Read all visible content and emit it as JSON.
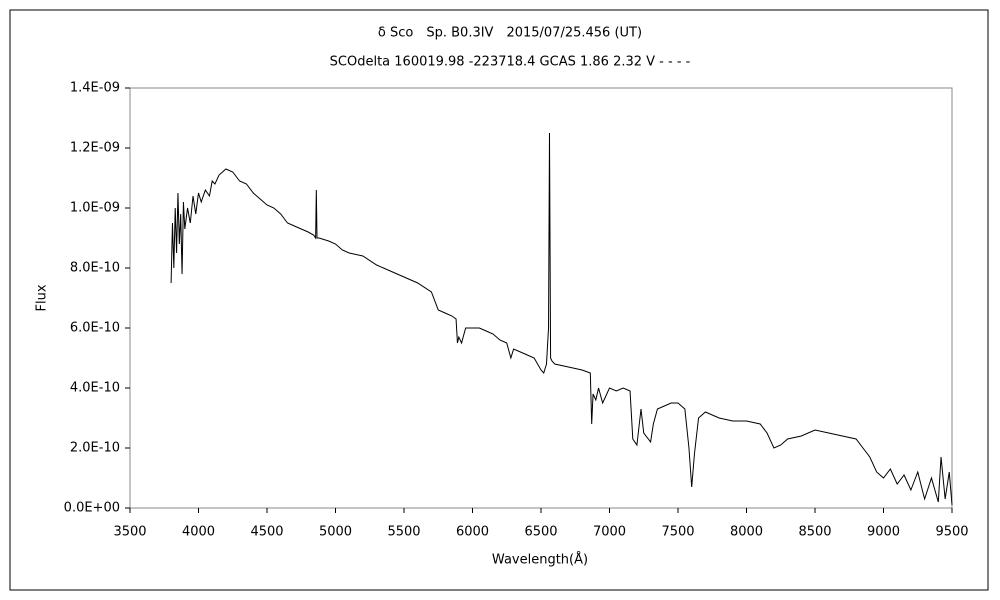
{
  "chart_data": {
    "type": "line",
    "title": "δ Sco　Sp. B0.3IV　2015/07/25.456 (UT)",
    "subtitle": "SCOdelta 160019.98 -223718.4 GCAS 1.86 2.32 V - - - -",
    "xlabel": "Wavelength(Å)",
    "ylabel": "Flux",
    "xlim": [
      3500,
      9500
    ],
    "xticks": [
      3500,
      4000,
      4500,
      5000,
      5500,
      6000,
      6500,
      7000,
      7500,
      8000,
      8500,
      9000,
      9500
    ],
    "ylim": [
      0,
      1.4e-09
    ],
    "yticks": [
      {
        "value": 0,
        "label": "0.0E+00"
      },
      {
        "value": 2e-10,
        "label": "2.0E-10"
      },
      {
        "value": 4e-10,
        "label": "4.0E-10"
      },
      {
        "value": 6e-10,
        "label": "6.0E-10"
      },
      {
        "value": 8e-10,
        "label": "8.0E-10"
      },
      {
        "value": 1e-09,
        "label": "1.0E-09"
      },
      {
        "value": 1.2e-09,
        "label": "1.2E-09"
      },
      {
        "value": 1.4e-09,
        "label": "1.4E-09"
      }
    ],
    "grid": false,
    "series": [
      {
        "color": "#000000",
        "x": [
          3800,
          3810,
          3820,
          3830,
          3840,
          3850,
          3860,
          3870,
          3880,
          3890,
          3900,
          3920,
          3940,
          3960,
          3980,
          4000,
          4020,
          4050,
          4080,
          4100,
          4120,
          4150,
          4200,
          4250,
          4300,
          4350,
          4400,
          4450,
          4500,
          4550,
          4600,
          4650,
          4700,
          4750,
          4800,
          4840,
          4855,
          4860,
          4865,
          4880,
          4950,
          5000,
          5050,
          5100,
          5200,
          5300,
          5400,
          5500,
          5600,
          5700,
          5750,
          5800,
          5850,
          5880,
          5890,
          5900,
          5920,
          5950,
          6000,
          6050,
          6100,
          6150,
          6200,
          6250,
          6280,
          6300,
          6350,
          6400,
          6450,
          6500,
          6520,
          6540,
          6555,
          6562,
          6570,
          6580,
          6600,
          6700,
          6800,
          6860,
          6870,
          6880,
          6900,
          6920,
          6950,
          7000,
          7050,
          7100,
          7150,
          7170,
          7200,
          7230,
          7250,
          7300,
          7320,
          7350,
          7400,
          7450,
          7500,
          7550,
          7580,
          7600,
          7620,
          7650,
          7700,
          7750,
          7800,
          7900,
          8000,
          8100,
          8150,
          8200,
          8250,
          8300,
          8400,
          8500,
          8600,
          8700,
          8800,
          8850,
          8900,
          8950,
          9000,
          9050,
          9100,
          9150,
          9200,
          9250,
          9300,
          9350,
          9400,
          9420,
          9450,
          9480,
          9500
        ],
        "values": [
          7.5e-10,
          9.5e-10,
          8e-10,
          1e-09,
          8.5e-10,
          1.05e-09,
          8.8e-10,
          9.8e-10,
          7.8e-10,
          1.02e-09,
          9.3e-10,
          1e-09,
          9.5e-10,
          1.04e-09,
          9.8e-10,
          1.05e-09,
          1.02e-09,
          1.06e-09,
          1.04e-09,
          1.09e-09,
          1.08e-09,
          1.11e-09,
          1.13e-09,
          1.12e-09,
          1.09e-09,
          1.08e-09,
          1.05e-09,
          1.03e-09,
          1.01e-09,
          1e-09,
          9.8e-10,
          9.5e-10,
          9.4e-10,
          9.3e-10,
          9.2e-10,
          9.1e-10,
          9e-10,
          1.06e-09,
          9e-10,
          9e-10,
          8.9e-10,
          8.8e-10,
          8.6e-10,
          8.5e-10,
          8.4e-10,
          8.1e-10,
          7.9e-10,
          7.7e-10,
          7.5e-10,
          7.2e-10,
          6.6e-10,
          6.5e-10,
          6.4e-10,
          6.3e-10,
          5.5e-10,
          5.7e-10,
          5.5e-10,
          6e-10,
          6e-10,
          6e-10,
          5.9e-10,
          5.8e-10,
          5.6e-10,
          5.5e-10,
          5e-10,
          5.3e-10,
          5.2e-10,
          5.1e-10,
          5e-10,
          4.6e-10,
          4.5e-10,
          4.8e-10,
          6e-10,
          1.25e-09,
          5e-10,
          4.9e-10,
          4.8e-10,
          4.7e-10,
          4.6e-10,
          4.5e-10,
          2.8e-10,
          3.8e-10,
          3.6e-10,
          4e-10,
          3.5e-10,
          4e-10,
          3.9e-10,
          4e-10,
          3.9e-10,
          2.3e-10,
          2.1e-10,
          3.3e-10,
          2.5e-10,
          2.2e-10,
          2.8e-10,
          3.3e-10,
          3.4e-10,
          3.5e-10,
          3.5e-10,
          3.3e-10,
          2e-10,
          7e-11,
          1.8e-10,
          3e-10,
          3.2e-10,
          3.1e-10,
          3e-10,
          2.9e-10,
          2.9e-10,
          2.8e-10,
          2.5e-10,
          2e-10,
          2.1e-10,
          2.3e-10,
          2.4e-10,
          2.6e-10,
          2.5e-10,
          2.4e-10,
          2.3e-10,
          2e-10,
          1.7e-10,
          1.2e-10,
          1e-10,
          1.3e-10,
          8e-11,
          1.1e-10,
          6e-11,
          1.2e-10,
          3e-11,
          1e-10,
          2e-11,
          1.7e-10,
          3e-11,
          1.2e-10,
          1e-11
        ]
      }
    ]
  }
}
